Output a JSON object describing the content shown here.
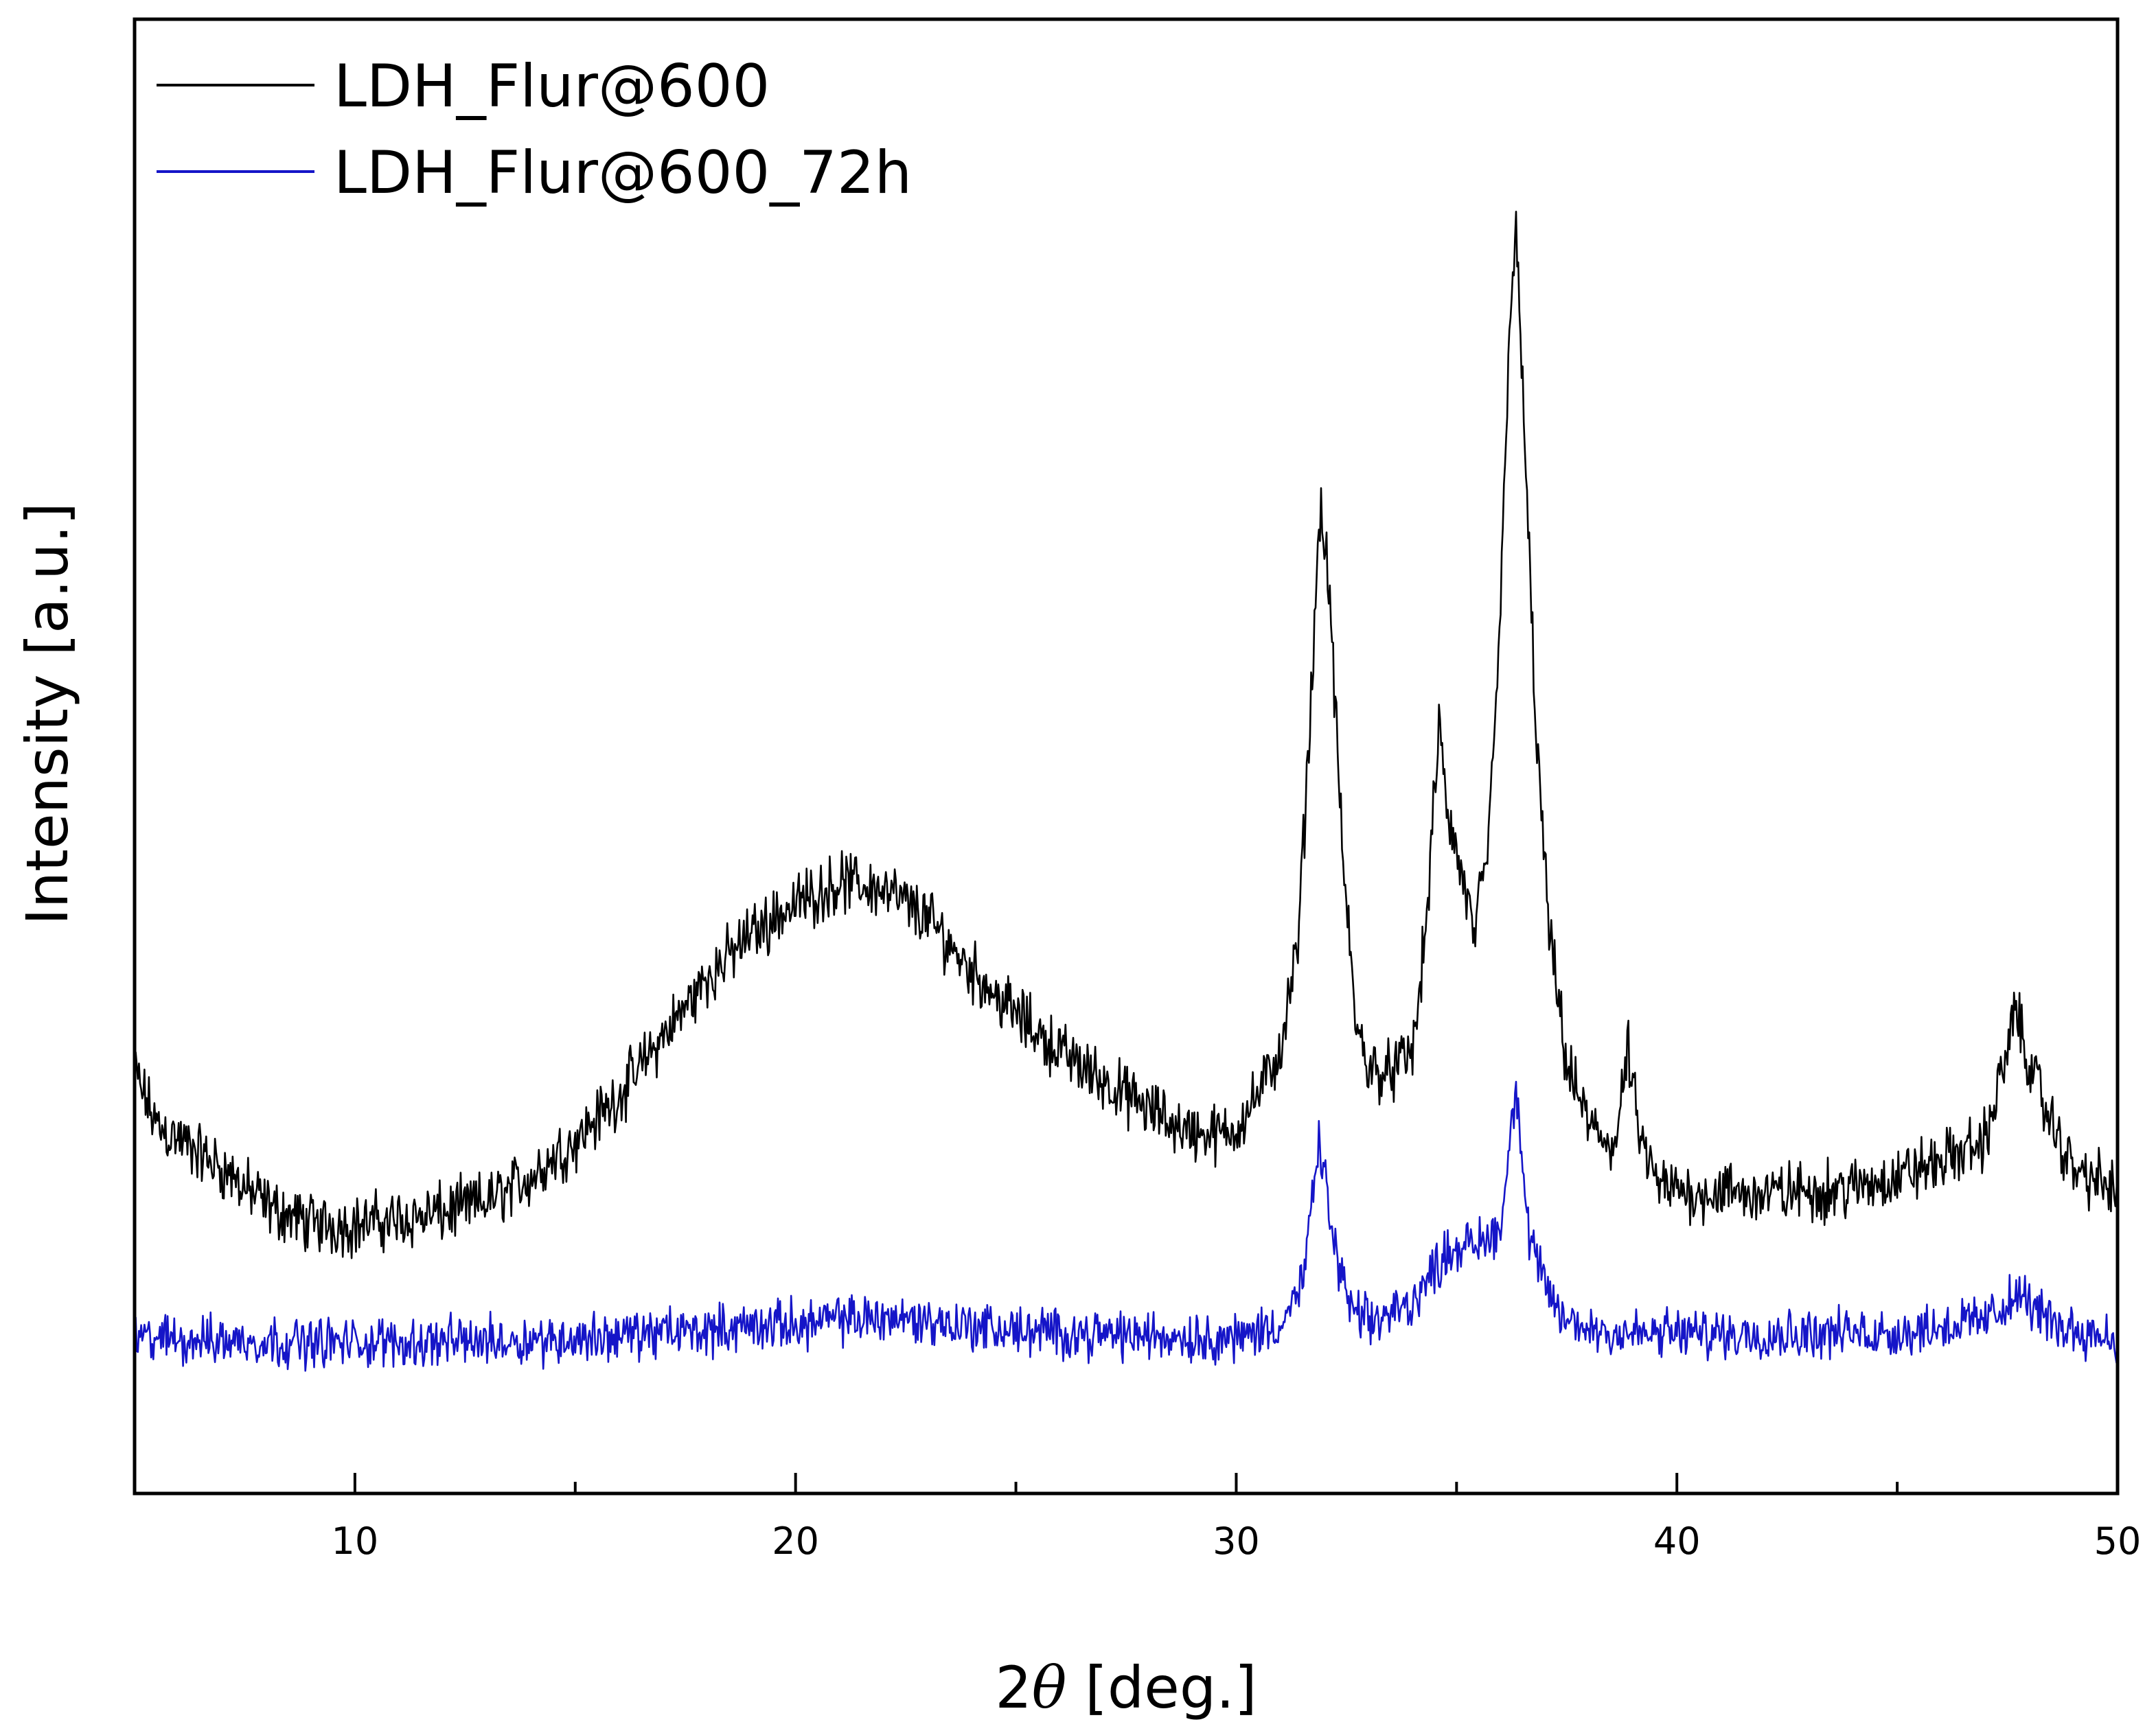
{
  "chart_data": {
    "type": "line",
    "title": "",
    "xlabel_prefix": "2",
    "xlabel_symbol": "θ",
    "xlabel_suffix": " [deg.]",
    "ylabel": "Intensity [a.u.]",
    "xlim": [
      5,
      50
    ],
    "ylim": [
      0,
      100
    ],
    "x_ticks_major": [
      10,
      20,
      30,
      40,
      50
    ],
    "x_ticks_minor": [
      5,
      15,
      25,
      35,
      45
    ],
    "x_tick_labels": [
      "10",
      "20",
      "30",
      "40",
      "50"
    ],
    "y_ticks_shown": false,
    "grid": false,
    "legend_position": "top-left",
    "series": [
      {
        "name": "LDH_Flur@600",
        "color": "#000000",
        "noise": 1.6,
        "points": [
          [
            5,
            28.5
          ],
          [
            5.5,
            25
          ],
          [
            6,
            24
          ],
          [
            7,
            22
          ],
          [
            8,
            19.5
          ],
          [
            9,
            18.3
          ],
          [
            10,
            18.2
          ],
          [
            11,
            18.6
          ],
          [
            12,
            19
          ],
          [
            13,
            19.8
          ],
          [
            14,
            21.5
          ],
          [
            15,
            24
          ],
          [
            16,
            27
          ],
          [
            17,
            31
          ],
          [
            18,
            35
          ],
          [
            19,
            38
          ],
          [
            20,
            40
          ],
          [
            21,
            41.5
          ],
          [
            22,
            41
          ],
          [
            23,
            39
          ],
          [
            24,
            35.5
          ],
          [
            25,
            32.5
          ],
          [
            26,
            30
          ],
          [
            27,
            28
          ],
          [
            28,
            26
          ],
          [
            29,
            24.5
          ],
          [
            29.8,
            24.3
          ],
          [
            30,
            25
          ],
          [
            30.5,
            27
          ],
          [
            31,
            30
          ],
          [
            31.4,
            37
          ],
          [
            31.7,
            54
          ],
          [
            31.9,
            67
          ],
          [
            32.1,
            62
          ],
          [
            32.4,
            44
          ],
          [
            32.7,
            32
          ],
          [
            33,
            29
          ],
          [
            33.5,
            28.5
          ],
          [
            34,
            30
          ],
          [
            34.3,
            38
          ],
          [
            34.6,
            52
          ],
          [
            34.8,
            46
          ],
          [
            35.1,
            42
          ],
          [
            35.4,
            38
          ],
          [
            35.7,
            43
          ],
          [
            36,
            60
          ],
          [
            36.2,
            80
          ],
          [
            36.35,
            85
          ],
          [
            36.5,
            75
          ],
          [
            36.8,
            52
          ],
          [
            37.1,
            38
          ],
          [
            37.5,
            29
          ],
          [
            38,
            25
          ],
          [
            38.6,
            23.5
          ],
          [
            38.9,
            30
          ],
          [
            39.1,
            25
          ],
          [
            39.5,
            21
          ],
          [
            40,
            20.5
          ],
          [
            42,
            20.3
          ],
          [
            44,
            20.7
          ],
          [
            45,
            21.5
          ],
          [
            46,
            22.5
          ],
          [
            47,
            24
          ],
          [
            47.5,
            30
          ],
          [
            47.7,
            33
          ],
          [
            47.9,
            30
          ],
          [
            48.5,
            25
          ],
          [
            49,
            22
          ],
          [
            50,
            20.5
          ]
        ]
      },
      {
        "name": "LDH_Flur@600_72h",
        "color": "#1515c8",
        "noise": 1.3,
        "points": [
          [
            5,
            10.5
          ],
          [
            10,
            10.2
          ],
          [
            15,
            10.5
          ],
          [
            20,
            11.5
          ],
          [
            22,
            12
          ],
          [
            25,
            11
          ],
          [
            30,
            10.5
          ],
          [
            31,
            11.5
          ],
          [
            31.5,
            14
          ],
          [
            31.9,
            24
          ],
          [
            32.2,
            17
          ],
          [
            32.6,
            12.5
          ],
          [
            33,
            11.5
          ],
          [
            34,
            13
          ],
          [
            34.8,
            16.5
          ],
          [
            35.5,
            17
          ],
          [
            36,
            18
          ],
          [
            36.35,
            28
          ],
          [
            36.6,
            18
          ],
          [
            37,
            14
          ],
          [
            37.5,
            11.5
          ],
          [
            39,
            10.8
          ],
          [
            45,
            10.9
          ],
          [
            47,
            11.8
          ],
          [
            47.8,
            13.5
          ],
          [
            48.5,
            11.5
          ],
          [
            50,
            10.5
          ]
        ]
      }
    ]
  }
}
